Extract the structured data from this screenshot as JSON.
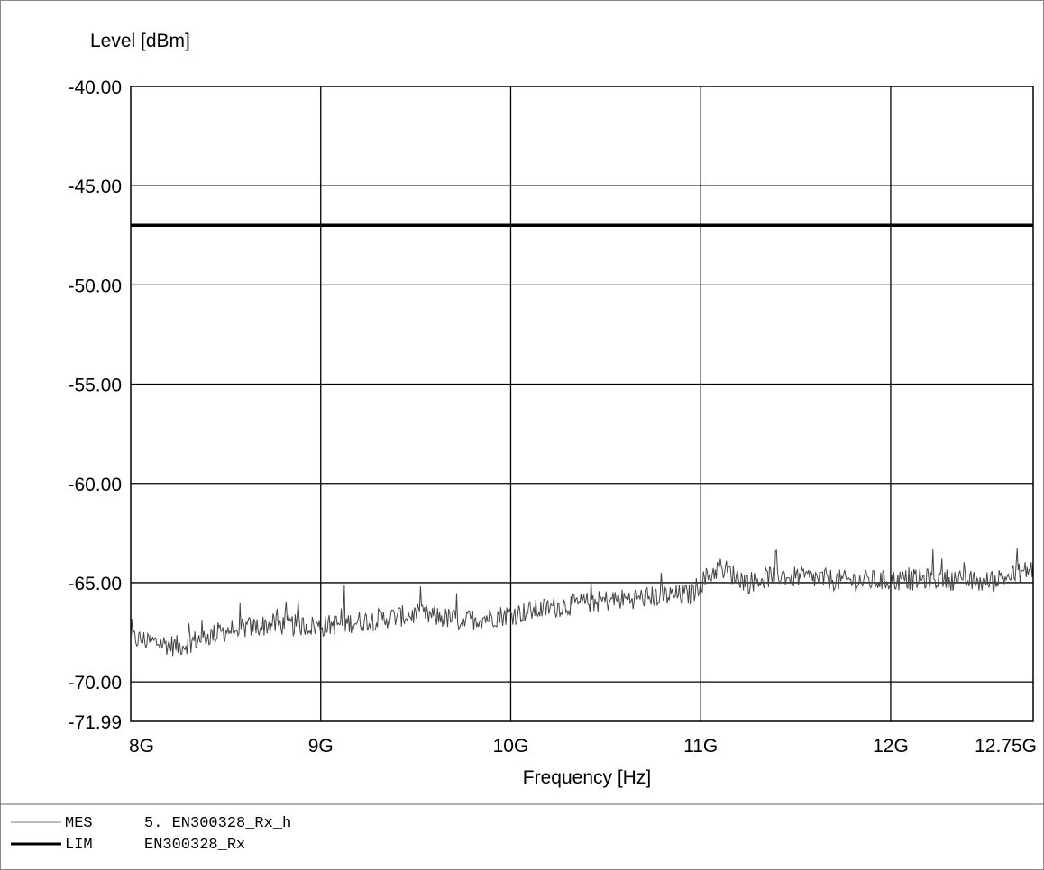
{
  "chart_data": {
    "type": "line",
    "ylabel": "Level [dBm]",
    "xlabel": "Frequency [Hz]",
    "ylim": [
      -71.99,
      -40.0
    ],
    "xlim": [
      8.0,
      12.75
    ],
    "x_unit_note": "GHz",
    "y_ticks": [
      "-40.00",
      "-45.00",
      "-50.00",
      "-55.00",
      "-60.00",
      "-65.00",
      "-70.00",
      "-71.99"
    ],
    "y_tick_values": [
      -40.0,
      -45.0,
      -50.0,
      -55.0,
      -60.0,
      -65.0,
      -70.0,
      -71.99
    ],
    "x_ticks": [
      "8G",
      "9G",
      "10G",
      "11G",
      "12G",
      "12.75G"
    ],
    "x_tick_values": [
      8.0,
      9.0,
      10.0,
      11.0,
      12.0,
      12.75
    ],
    "grid": true,
    "series": [
      {
        "name": "MES",
        "style": "thin-noisy",
        "color": "#444444",
        "x": [
          8.0,
          8.25,
          8.5,
          8.75,
          9.0,
          9.25,
          9.5,
          9.75,
          10.0,
          10.25,
          10.5,
          10.75,
          10.95,
          11.0,
          11.1,
          11.25,
          11.4,
          11.5,
          11.75,
          12.0,
          12.25,
          12.5,
          12.75
        ],
        "y": [
          -67.8,
          -68.2,
          -67.4,
          -67.1,
          -67.2,
          -66.9,
          -66.6,
          -66.9,
          -66.6,
          -66.2,
          -65.9,
          -65.7,
          -65.6,
          -65.0,
          -64.2,
          -65.0,
          -64.6,
          -64.7,
          -64.9,
          -64.9,
          -64.8,
          -65.0,
          -64.3
        ],
        "noise_amplitude": 0.55
      },
      {
        "name": "LIM",
        "style": "thick",
        "color": "#000000",
        "x": [
          8.0,
          12.75
        ],
        "y": [
          -47.0,
          -47.0
        ]
      }
    ],
    "legend": [
      {
        "key": "MES",
        "text": "5. EN300328_Rx_h"
      },
      {
        "key": "LIM",
        "text": "EN300328_Rx"
      }
    ],
    "legend_placement": "bottom-left"
  }
}
